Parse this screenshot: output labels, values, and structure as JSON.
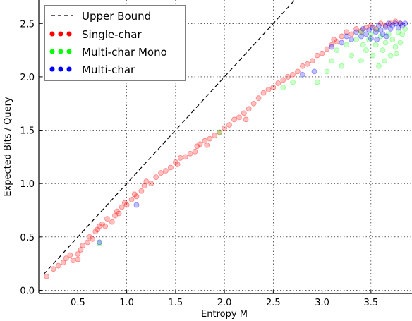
{
  "chart_data": {
    "type": "scatter",
    "title": "",
    "xlabel": "Entropy M",
    "ylabel": "Expected Bits / Query",
    "xlim": [
      0.1,
      3.92
    ],
    "ylim": [
      -0.03,
      2.72
    ],
    "x_ticks": [
      0.5,
      1.0,
      1.5,
      2.0,
      2.5,
      3.0,
      3.5
    ],
    "x_tick_labels": [
      "0.5",
      "1.0",
      "1.5",
      "2.0",
      "2.5",
      "3.0",
      "3.5"
    ],
    "y_ticks": [
      0.0,
      0.5,
      1.0,
      1.5,
      2.0,
      2.5
    ],
    "y_tick_labels": [
      "0.0",
      "0.5",
      "1.0",
      "1.5",
      "2.0",
      "2.5"
    ],
    "grid": true,
    "legend_position": "top-left",
    "reference_line": {
      "name": "Upper Bound",
      "style": "dashed",
      "color": "#000000",
      "x": [
        0.15,
        2.72
      ],
      "y": [
        0.15,
        2.72
      ]
    },
    "series": [
      {
        "name": "Single-char",
        "color": "#ff0000",
        "points": [
          [
            0.18,
            0.13
          ],
          [
            0.25,
            0.2
          ],
          [
            0.3,
            0.23
          ],
          [
            0.35,
            0.26
          ],
          [
            0.38,
            0.3
          ],
          [
            0.42,
            0.33
          ],
          [
            0.45,
            0.28
          ],
          [
            0.5,
            0.34
          ],
          [
            0.5,
            0.29
          ],
          [
            0.53,
            0.38
          ],
          [
            0.55,
            0.42
          ],
          [
            0.6,
            0.45
          ],
          [
            0.62,
            0.5
          ],
          [
            0.65,
            0.48
          ],
          [
            0.68,
            0.55
          ],
          [
            0.7,
            0.57
          ],
          [
            0.72,
            0.6
          ],
          [
            0.75,
            0.62
          ],
          [
            0.78,
            0.6
          ],
          [
            0.8,
            0.67
          ],
          [
            0.85,
            0.64
          ],
          [
            0.88,
            0.7
          ],
          [
            0.9,
            0.74
          ],
          [
            0.92,
            0.72
          ],
          [
            0.95,
            0.78
          ],
          [
            0.98,
            0.82
          ],
          [
            1.0,
            0.8
          ],
          [
            1.05,
            0.85
          ],
          [
            1.08,
            0.9
          ],
          [
            1.1,
            0.88
          ],
          [
            1.15,
            0.93
          ],
          [
            1.18,
            0.98
          ],
          [
            1.2,
            1.02
          ],
          [
            1.25,
            1.0
          ],
          [
            1.3,
            1.06
          ],
          [
            1.35,
            1.1
          ],
          [
            1.4,
            1.12
          ],
          [
            1.45,
            1.15
          ],
          [
            1.5,
            1.2
          ],
          [
            1.52,
            1.18
          ],
          [
            1.55,
            1.24
          ],
          [
            1.6,
            1.25
          ],
          [
            1.65,
            1.28
          ],
          [
            1.7,
            1.3
          ],
          [
            1.72,
            1.35
          ],
          [
            1.75,
            1.37
          ],
          [
            1.8,
            1.4
          ],
          [
            1.82,
            1.36
          ],
          [
            1.85,
            1.42
          ],
          [
            1.9,
            1.45
          ],
          [
            1.95,
            1.48
          ],
          [
            2.0,
            1.52
          ],
          [
            2.05,
            1.55
          ],
          [
            2.1,
            1.6
          ],
          [
            2.15,
            1.62
          ],
          [
            2.2,
            1.66
          ],
          [
            2.22,
            1.6
          ],
          [
            2.25,
            1.7
          ],
          [
            2.3,
            1.75
          ],
          [
            2.35,
            1.8
          ],
          [
            2.4,
            1.85
          ],
          [
            2.45,
            1.88
          ],
          [
            2.5,
            1.9
          ],
          [
            2.55,
            1.94
          ],
          [
            2.6,
            1.97
          ],
          [
            2.65,
            2.0
          ],
          [
            2.7,
            2.02
          ],
          [
            2.75,
            2.05
          ],
          [
            2.8,
            2.1
          ],
          [
            2.85,
            2.12
          ],
          [
            2.9,
            2.15
          ],
          [
            2.95,
            2.2
          ],
          [
            3.0,
            2.22
          ],
          [
            3.05,
            2.26
          ],
          [
            3.1,
            2.3
          ],
          [
            3.12,
            2.35
          ],
          [
            3.15,
            2.33
          ],
          [
            3.2,
            2.38
          ],
          [
            3.25,
            2.42
          ],
          [
            3.3,
            2.4
          ],
          [
            3.35,
            2.45
          ],
          [
            3.4,
            2.43
          ],
          [
            3.45,
            2.46
          ],
          [
            3.5,
            2.48
          ],
          [
            3.55,
            2.45
          ],
          [
            3.6,
            2.5
          ],
          [
            3.65,
            2.48
          ],
          [
            3.7,
            2.5
          ],
          [
            3.75,
            2.52
          ],
          [
            3.8,
            2.5
          ]
        ]
      },
      {
        "name": "Multi-char Mono",
        "color": "#00ff00",
        "points": [
          [
            0.72,
            0.44
          ],
          [
            1.95,
            1.48
          ],
          [
            2.6,
            1.9
          ],
          [
            2.7,
            1.95
          ],
          [
            2.95,
            1.95
          ],
          [
            3.05,
            2.05
          ],
          [
            3.1,
            2.15
          ],
          [
            3.15,
            2.25
          ],
          [
            3.2,
            2.1
          ],
          [
            3.25,
            2.3
          ],
          [
            3.3,
            2.2
          ],
          [
            3.35,
            2.35
          ],
          [
            3.4,
            2.15
          ],
          [
            3.42,
            2.3
          ],
          [
            3.45,
            2.25
          ],
          [
            3.5,
            2.4
          ],
          [
            3.52,
            2.2
          ],
          [
            3.55,
            2.3
          ],
          [
            3.58,
            2.1
          ],
          [
            3.6,
            2.38
          ],
          [
            3.62,
            2.25
          ],
          [
            3.65,
            2.32
          ],
          [
            3.68,
            2.4
          ],
          [
            3.7,
            2.2
          ],
          [
            3.72,
            2.35
          ],
          [
            3.75,
            2.28
          ],
          [
            3.78,
            2.42
          ],
          [
            3.8,
            2.32
          ],
          [
            3.82,
            2.4
          ],
          [
            3.85,
            2.45
          ],
          [
            3.4,
            2.42
          ],
          [
            3.48,
            2.35
          ],
          [
            3.56,
            2.44
          ],
          [
            3.64,
            2.15
          ],
          [
            3.76,
            2.22
          ]
        ]
      },
      {
        "name": "Multi-char",
        "color": "#0000ff",
        "points": [
          [
            0.72,
            0.45
          ],
          [
            1.1,
            0.8
          ],
          [
            2.8,
            2.02
          ],
          [
            2.92,
            2.05
          ],
          [
            3.1,
            2.28
          ],
          [
            3.2,
            2.32
          ],
          [
            3.25,
            2.38
          ],
          [
            3.3,
            2.35
          ],
          [
            3.35,
            2.42
          ],
          [
            3.4,
            2.38
          ],
          [
            3.42,
            2.45
          ],
          [
            3.45,
            2.4
          ],
          [
            3.48,
            2.44
          ],
          [
            3.5,
            2.36
          ],
          [
            3.52,
            2.46
          ],
          [
            3.55,
            2.42
          ],
          [
            3.58,
            2.48
          ],
          [
            3.6,
            2.44
          ],
          [
            3.62,
            2.4
          ],
          [
            3.65,
            2.47
          ],
          [
            3.68,
            2.5
          ],
          [
            3.7,
            2.45
          ],
          [
            3.72,
            2.48
          ],
          [
            3.75,
            2.5
          ],
          [
            3.78,
            2.46
          ],
          [
            3.8,
            2.5
          ],
          [
            3.82,
            2.48
          ],
          [
            3.85,
            2.5
          ],
          [
            3.56,
            2.35
          ],
          [
            3.66,
            2.38
          ]
        ]
      }
    ]
  }
}
